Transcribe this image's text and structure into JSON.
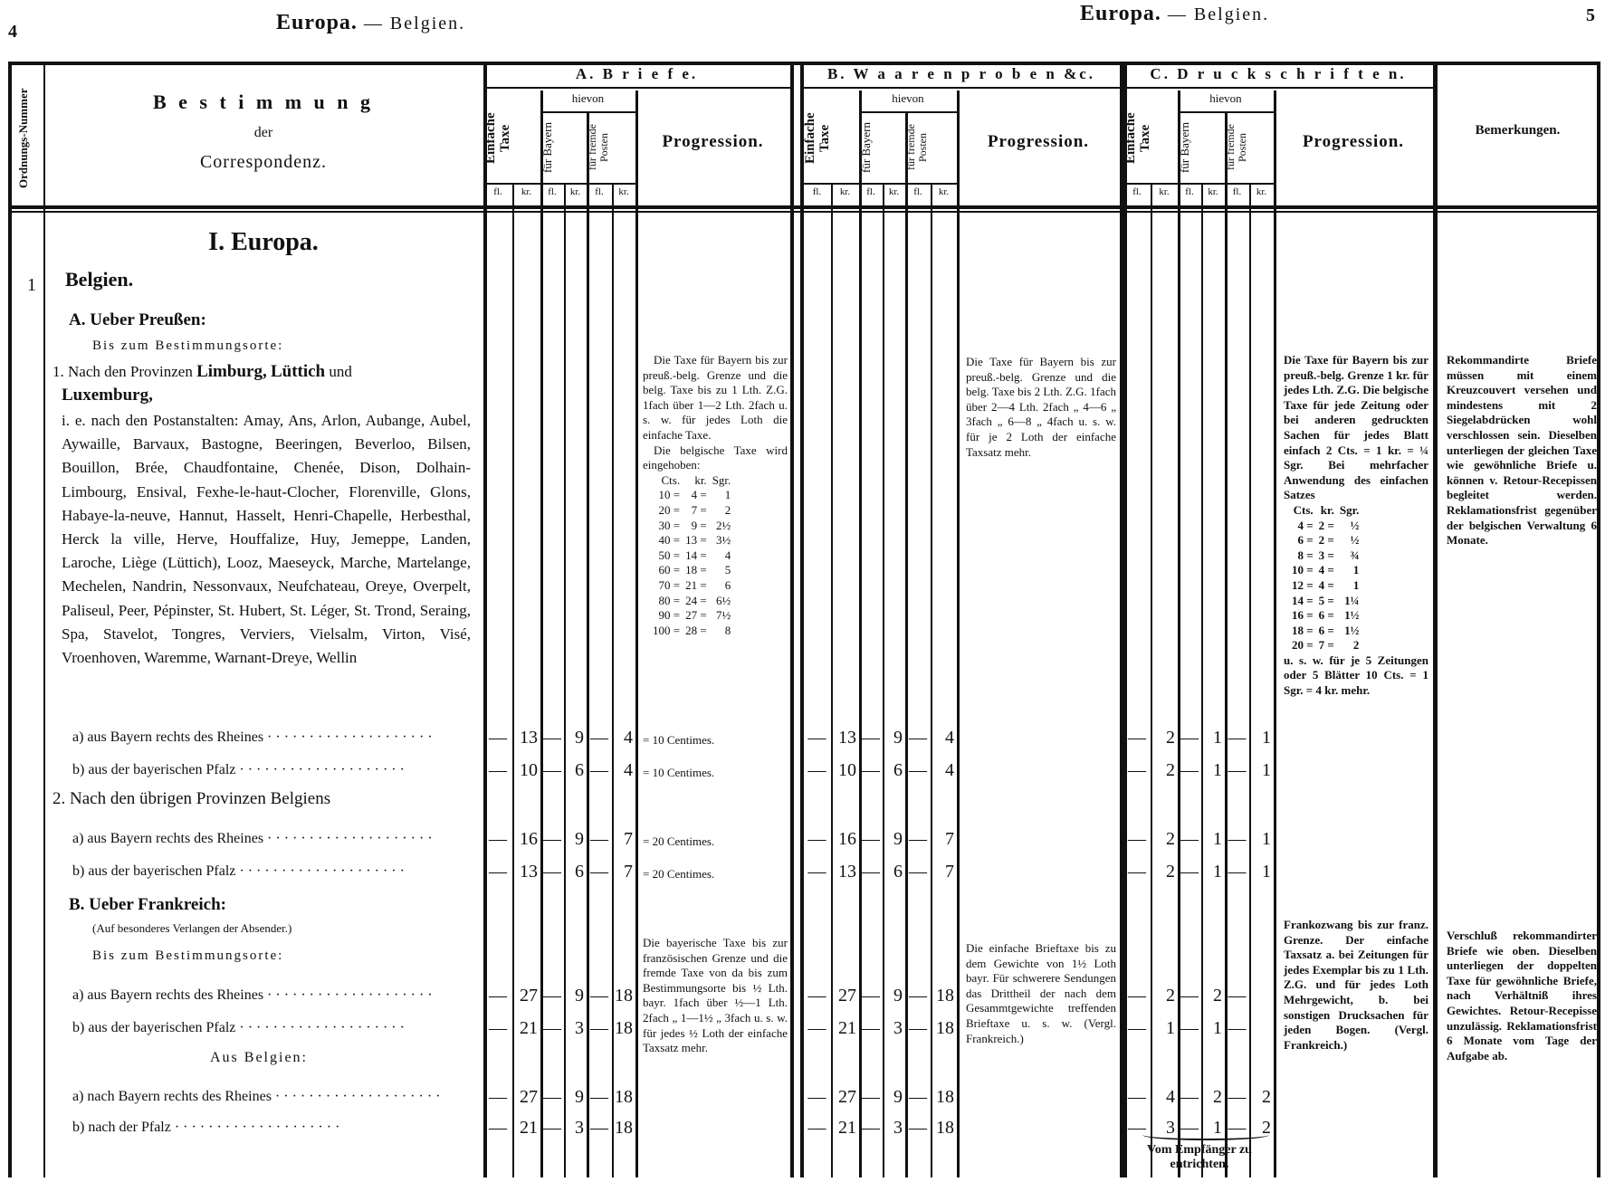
{
  "page_left": {
    "number": "4",
    "title": "Europa.",
    "subtitle": "— Belgien."
  },
  "page_right": {
    "number": "5",
    "title": "Europa.",
    "subtitle": "— Belgien."
  },
  "header": {
    "ordnungs_nummer": "Ordnungs-Nummer",
    "bestimmung": [
      "B e s t i m m u n g",
      "der",
      "Correspondenz."
    ],
    "groups": [
      {
        "title": "A. B r i e f e."
      },
      {
        "title": "B. W a a r e n p r o b e n  &c."
      },
      {
        "title": "C. D r u c k s c h r i f t e n."
      }
    ],
    "einfache_taxe": "Einfache Taxe",
    "hievon": "hievon",
    "fuer_bayern": "für Bayern",
    "fuer_fremde": "für fremde Posten",
    "progression": "Progression.",
    "bemerkungen": "Bemerkungen.",
    "fl": "fl.",
    "kr": "kr."
  },
  "content": {
    "section": "I. Europa.",
    "number": "1",
    "country": "Belgien.",
    "a_heading": "A. Ueber Preußen:",
    "bis_zum": "Bis zum Bestimmungsorte:",
    "nach1_prefix": "1. Nach den Provinzen",
    "nach1_bold1": "Limburg,",
    "nach1_bold2": "Lüttich",
    "nach1_und": "und",
    "nach1_bold3": "Luxemburg,",
    "places": "i. e. nach den Postanstalten: Amay, Ans, Arlon, Aubange, Aubel, Aywaille, Barvaux, Bastogne, Beeringen, Beverloo, Bilsen, Bouillon, Brée, Chaudfontaine, Chenée, Dison, Dolhain-Limbourg, Ensival, Fexhe-le-haut-Clocher, Florenville, Glons, Habaye-la-neuve, Hannut, Hasselt, Henri-Chapelle, Herbesthal, Herck la ville, Herve, Houffalize, Huy, Jemeppe, Landen, Laroche, Liège (Lüttich), Looz, Maeseyck, Marche, Martelange, Mechelen, Nandrin, Nessonvaux, Neufchateau, Oreye, Overpelt, Paliseul, Peer, Pépinster, St. Hubert, St. Léger, St. Trond, Seraing, Spa, Stavelot, Tongres, Verviers, Vielsalm, Virton, Visé, Vroenhoven, Waremme, Warnant-Dreye, Wellin",
    "nach2": "2. Nach den übrigen Provinzen Belgiens",
    "b_heading": "B. Ueber Frankreich:",
    "b_note": "(Auf besonderes Verlangen der Absender.)",
    "bis_zum_2": "Bis zum Bestimmungsorte:",
    "aus_belgien": "Aus Belgien:",
    "receiver_note": "Vom Empfänger zu entrichten."
  },
  "rows": [
    {
      "label": "a) aus Bayern rechts des Rheines",
      "A": [
        "13",
        "9",
        "4"
      ],
      "A_note": "= 10 Centimes.",
      "B": [
        "13",
        "9",
        "4"
      ],
      "C": [
        "2",
        "1",
        "1"
      ]
    },
    {
      "label": "b) aus der bayerischen Pfalz",
      "A": [
        "10",
        "6",
        "4"
      ],
      "A_note": "= 10 Centimes.",
      "B": [
        "10",
        "6",
        "4"
      ],
      "C": [
        "2",
        "1",
        "1"
      ]
    },
    {
      "label": "a) aus Bayern rechts des Rheines",
      "A": [
        "16",
        "9",
        "7"
      ],
      "A_note": "= 20 Centimes.",
      "B": [
        "16",
        "9",
        "7"
      ],
      "C": [
        "2",
        "1",
        "1"
      ]
    },
    {
      "label": "b) aus der bayerischen Pfalz",
      "A": [
        "13",
        "6",
        "7"
      ],
      "A_note": "= 20 Centimes.",
      "B": [
        "13",
        "6",
        "7"
      ],
      "C": [
        "2",
        "1",
        "1"
      ]
    },
    {
      "label": "a) aus Bayern rechts des Rheines",
      "A": [
        "27",
        "9",
        "18"
      ],
      "A_note": "",
      "B": [
        "27",
        "9",
        "18"
      ],
      "C": [
        "2",
        "2",
        ""
      ]
    },
    {
      "label": "b) aus der bayerischen Pfalz",
      "A": [
        "21",
        "3",
        "18"
      ],
      "A_note": "",
      "B": [
        "21",
        "3",
        "18"
      ],
      "C": [
        "1",
        "1",
        ""
      ]
    },
    {
      "label": "a) nach Bayern rechts des Rheines",
      "A": [
        "27",
        "9",
        "18"
      ],
      "A_note": "",
      "B": [
        "27",
        "9",
        "18"
      ],
      "C": [
        "4",
        "2",
        "2"
      ]
    },
    {
      "label": "b) nach der Pfalz",
      "A": [
        "21",
        "3",
        "18"
      ],
      "A_note": "",
      "B": [
        "21",
        "3",
        "18"
      ],
      "C": [
        "3",
        "1",
        "2"
      ]
    }
  ],
  "progression": {
    "A1": "Die Taxe für Bayern bis zur preuß.-belg. Grenze und die belg. Taxe bis zu 1 Lth. Z.G. 1fach über 1—2 Lth. 2fach u. s. w. für jedes Loth die einfache Taxe.",
    "A1b": "Die belgische Taxe wird eingehoben:",
    "A1_table_head": [
      "Cts.",
      "kr.",
      "Sgr."
    ],
    "A1_table": [
      [
        "10",
        "4",
        "1"
      ],
      [
        "20",
        "7",
        "2"
      ],
      [
        "30",
        "9",
        "2½"
      ],
      [
        "40",
        "13",
        "3½"
      ],
      [
        "50",
        "14",
        "4"
      ],
      [
        "60",
        "18",
        "5"
      ],
      [
        "70",
        "21",
        "6"
      ],
      [
        "80",
        "24",
        "6½"
      ],
      [
        "90",
        "27",
        "7½"
      ],
      [
        "100",
        "28",
        "8"
      ]
    ],
    "A2": "Die bayerische Taxe bis zur französischen Grenze und die fremde Taxe von da bis zum Bestimmungsorte bis ½ Lth. bayr. 1fach über ½—1 Lth. 2fach „ 1—1½ „ 3fach u. s. w. für jedes ½ Loth der einfache Taxsatz mehr.",
    "B1": "Die Taxe für Bayern bis zur preuß.-belg. Grenze und die belg. Taxe bis 2 Lth. Z.G. 1fach über 2—4 Lth. 2fach „ 4—6 „ 3fach „ 6—8 „ 4fach u. s. w. für je 2 Loth der einfache Taxsatz mehr.",
    "B2": "Die einfache Brieftaxe bis zu dem Gewichte von 1½ Loth bayr. Für schwerere Sendungen das Drittheil der nach dem Gesammtgewichte treffenden Brieftaxe u. s. w. (Vergl. Frankreich.)",
    "C1": "Die Taxe für Bayern bis zur preuß.-belg. Grenze 1 kr. für jedes Lth. Z.G. Die belgische Taxe für jede Zeitung oder bei anderen gedruckten Sachen für jedes Blatt einfach 2 Cts. = 1 kr. = ¼ Sgr. Bei mehrfacher Anwendung des einfachen Satzes",
    "C1_table_head": [
      "Cts.",
      "kr.",
      "Sgr."
    ],
    "C1_table": [
      [
        "4",
        "2",
        "½"
      ],
      [
        "6",
        "2",
        "½"
      ],
      [
        "8",
        "3",
        "¾"
      ],
      [
        "10",
        "4",
        "1"
      ],
      [
        "12",
        "4",
        "1"
      ],
      [
        "14",
        "5",
        "1¼"
      ],
      [
        "16",
        "6",
        "1½"
      ],
      [
        "18",
        "6",
        "1½"
      ],
      [
        "20",
        "7",
        "2"
      ]
    ],
    "C1b": "u. s. w. für je 5 Zeitungen oder 5 Blätter 10 Cts. = 1 Sgr. = 4 kr. mehr.",
    "C2": "Frankozwang bis zur franz. Grenze. Der einfache Taxsatz a. bei Zeitungen für jedes Exemplar bis zu 1 Lth. Z.G. und für jedes Loth Mehrgewicht, b. bei sonstigen Drucksachen für jeden Bogen. (Vergl. Frankreich.)"
  },
  "bemerkungen": {
    "first": "Rekommandirte Briefe müssen mit einem Kreuzcouvert versehen und mindestens mit 2 Siegelabdrücken wohl verschlossen sein. Dieselben unterliegen der gleichen Taxe wie gewöhnliche Briefe u. können v. Retour-Recepissen begleitet werden. Reklamationsfrist gegenüber der belgischen Verwaltung 6 Monate.",
    "second": "Verschluß rekommandirter Briefe wie oben. Dieselben unterliegen der doppelten Taxe für gewöhnliche Briefe, nach Verhältniß ihres Gewichtes. Retour-Recepisse unzulässig. Reklamationsfrist 6 Monate vom Tage der Aufgabe ab."
  }
}
